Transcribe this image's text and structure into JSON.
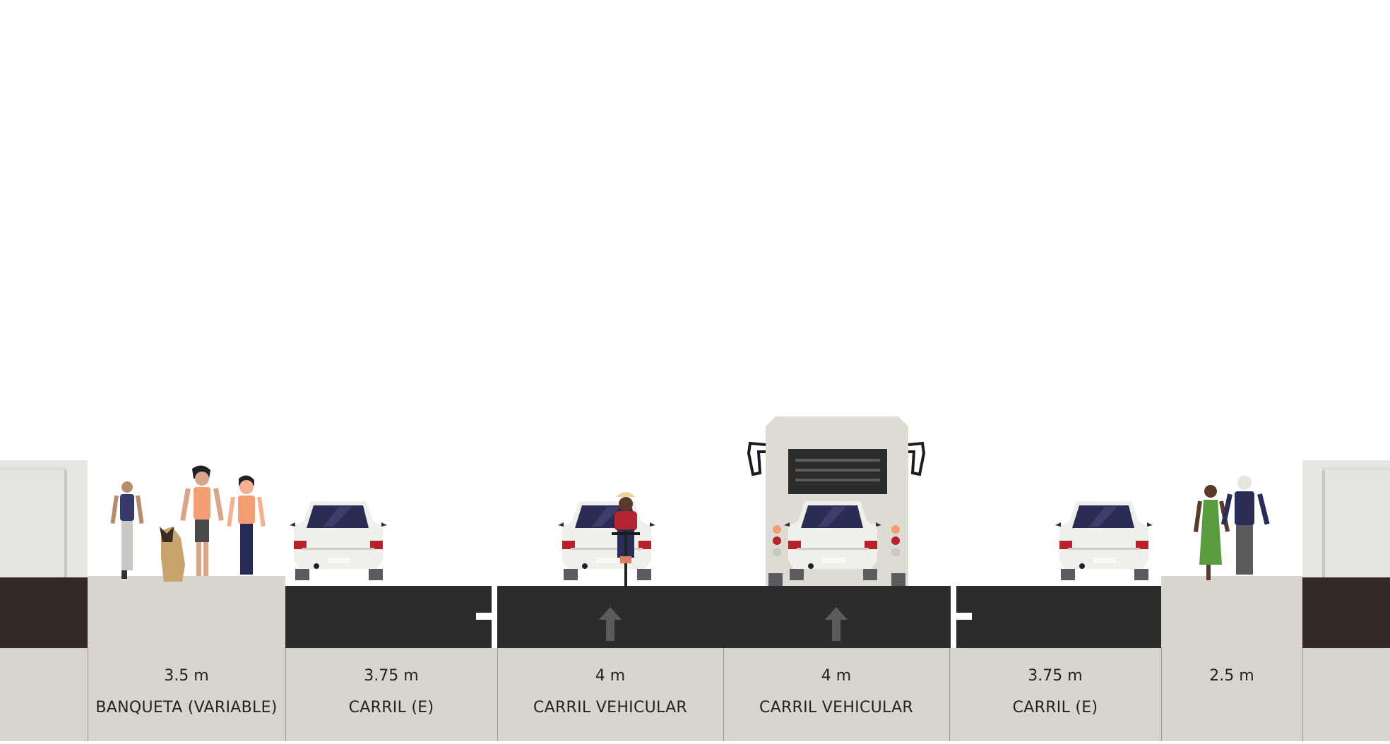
{
  "segments": [
    {
      "width": "3.5 m",
      "name": "BANQUETA (VARIABLE)"
    },
    {
      "width": "3.75 m",
      "name": "CARRIL (E)"
    },
    {
      "width": "4 m",
      "name": "CARRIL VEHICULAR"
    },
    {
      "width": "4 m",
      "name": "CARRIL VEHICULAR"
    },
    {
      "width": "3.75 m",
      "name": "CARRIL (E)"
    },
    {
      "width": "2.5 m",
      "name": ""
    }
  ],
  "colors": {
    "asphalt": "#2b2d2a",
    "sidewalk": "#d9d6d0",
    "label_bg": "#d8d5cf",
    "building": "#e6e4e0",
    "building_base": "#332a26",
    "vehicle_body": "#eeeeea",
    "windshield": "#2b2c55",
    "tail_light": "#b8222b",
    "arrow": "#5b5c5a"
  },
  "icons": [
    "pedestrian-icon",
    "dog-icon",
    "car-icon",
    "cyclist-icon",
    "bus-icon",
    "lane-arrow-icon"
  ]
}
